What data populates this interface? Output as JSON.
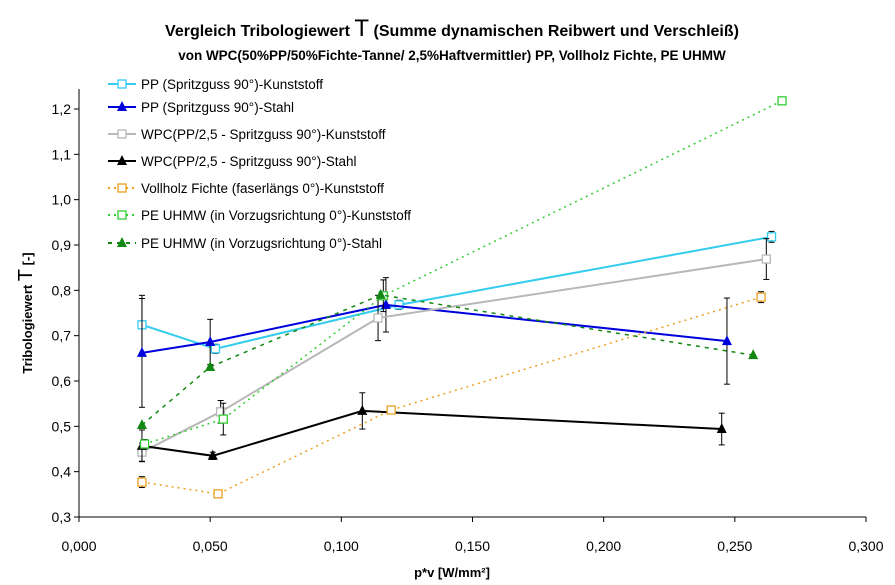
{
  "chart_data": {
    "type": "line",
    "title_pre": "Vergleich Tribologiewert ",
    "title_T": "T",
    "title_post": " (Summe dynamischen Reibwert und Verschleiß)",
    "subtitle": "von WPC(50%PP/50%Fichte-Tanne/ 2,5%Haftvermittler) PP, Vollholz Fichte, PE UHMW",
    "xlabel": "p*v [W/mm²]",
    "ylabel_pre": "Tribologiewert ",
    "ylabel_T": "T",
    "ylabel_post": " [-]",
    "xlim": [
      0,
      0.3
    ],
    "ylim": [
      0.3,
      1.25
    ],
    "xticks": [
      "0,000",
      "0,050",
      "0,100",
      "0,150",
      "0,200",
      "0,250",
      "0,300"
    ],
    "xtick_values": [
      0,
      0.05,
      0.1,
      0.15,
      0.2,
      0.25,
      0.3
    ],
    "yticks": [
      "0,3",
      "0,4",
      "0,5",
      "0,6",
      "0,7",
      "0,8",
      "0,9",
      "1,0",
      "1,1",
      "1,2"
    ],
    "ytick_values": [
      0.3,
      0.4,
      0.5,
      0.6,
      0.7,
      0.8,
      0.9,
      1.0,
      1.1,
      1.2
    ],
    "legend_position": "top-left",
    "series": [
      {
        "name": "PP (Spritzguss 90°)-Kunststoff",
        "color": "#33CCEE",
        "marker": "square",
        "dash": "solid",
        "x": [
          0.024,
          0.052,
          0.122,
          0.264
        ],
        "y": [
          0.724,
          0.671,
          0.768,
          0.918
        ],
        "err": [
          0.065,
          0.01,
          0.01,
          0.012
        ]
      },
      {
        "name": "PP (Spritzguss 90°)-Stahl",
        "color": "#0000DD",
        "marker": "triangle",
        "dash": "solid",
        "x": [
          0.024,
          0.05,
          0.117,
          0.247
        ],
        "y": [
          0.662,
          0.686,
          0.768,
          0.688
        ],
        "err": [
          0.12,
          0.05,
          0.06,
          0.095
        ]
      },
      {
        "name": "WPC(PP/2,5 - Spritzguss 90°)-Kunststoff",
        "color": "#B8B8B8",
        "marker": "square",
        "dash": "solid",
        "x": [
          0.024,
          0.054,
          0.114,
          0.262
        ],
        "y": [
          0.443,
          0.532,
          0.739,
          0.869
        ],
        "err": [
          0.02,
          0.025,
          0.05,
          0.045
        ]
      },
      {
        "name": "WPC(PP/2,5 - Spritzguss 90°)-Stahl",
        "color": "#000000",
        "marker": "triangle",
        "dash": "solid",
        "x": [
          0.024,
          0.051,
          0.108,
          0.245
        ],
        "y": [
          0.457,
          0.435,
          0.534,
          0.494
        ],
        "err": [
          0.035,
          0.008,
          0.04,
          0.035
        ]
      },
      {
        "name": "Vollholz Fichte (faserlängs 0°)-Kunststoff",
        "color": "#E8A020",
        "marker": "square",
        "dash": "dot",
        "x": [
          0.024,
          0.053,
          0.119,
          0.26
        ],
        "y": [
          0.377,
          0.351,
          0.536,
          0.785
        ],
        "err": [
          0.012,
          0.005,
          0.005,
          0.012
        ]
      },
      {
        "name": "PE UHMW (in Vorzugsrichtung 0°)-Kunststoff",
        "color": "#33CC33",
        "marker": "square",
        "dash": "dot",
        "x": [
          0.025,
          0.055,
          0.116,
          0.268
        ],
        "y": [
          0.461,
          0.516,
          0.788,
          1.218
        ],
        "err": [
          0.01,
          0.035,
          0.035,
          0.005
        ]
      },
      {
        "name": "PE UHMW (in Vorzugsrichtung 0°)-Stahl",
        "color": "#118811",
        "marker": "triangle",
        "dash": "dash",
        "x": [
          0.024,
          0.05,
          0.115,
          0.257
        ],
        "y": [
          0.503,
          0.631,
          0.79,
          0.657
        ],
        "err": [
          0,
          0,
          0,
          0
        ]
      }
    ]
  }
}
